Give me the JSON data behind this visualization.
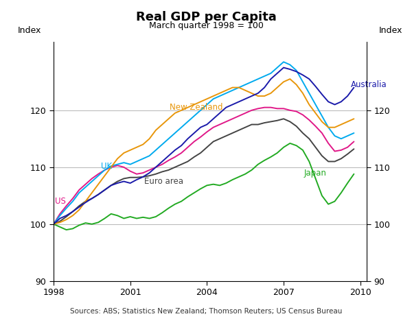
{
  "title": "Real GDP per Capita",
  "subtitle": "March quarter 1998 = 100",
  "ylabel_left": "Index",
  "ylabel_right": "Index",
  "source": "Sources: ABS; Statistics New Zealand; Thomson Reuters; US Census Bureau",
  "xlim": [
    1998.0,
    2010.25
  ],
  "ylim": [
    90,
    132
  ],
  "yticks": [
    90,
    100,
    110,
    120
  ],
  "xticks": [
    1998,
    2001,
    2004,
    2007,
    2010
  ],
  "series": {
    "Australia": {
      "color": "#1a1aaa",
      "ann_x": 2009.62,
      "ann_y": 124.5,
      "ann_ha": "left",
      "data": [
        [
          1998.0,
          100.0
        ],
        [
          1998.25,
          101.0
        ],
        [
          1998.5,
          101.5
        ],
        [
          1998.75,
          102.2
        ],
        [
          1999.0,
          103.0
        ],
        [
          1999.25,
          103.8
        ],
        [
          1999.5,
          104.5
        ],
        [
          1999.75,
          105.2
        ],
        [
          2000.0,
          106.0
        ],
        [
          2000.25,
          106.8
        ],
        [
          2000.5,
          107.2
        ],
        [
          2000.75,
          107.5
        ],
        [
          2001.0,
          107.2
        ],
        [
          2001.25,
          107.8
        ],
        [
          2001.5,
          108.3
        ],
        [
          2001.75,
          109.0
        ],
        [
          2002.0,
          110.0
        ],
        [
          2002.25,
          111.0
        ],
        [
          2002.5,
          112.0
        ],
        [
          2002.75,
          113.0
        ],
        [
          2003.0,
          113.8
        ],
        [
          2003.25,
          115.0
        ],
        [
          2003.5,
          116.0
        ],
        [
          2003.75,
          117.0
        ],
        [
          2004.0,
          117.5
        ],
        [
          2004.25,
          118.5
        ],
        [
          2004.5,
          119.5
        ],
        [
          2004.75,
          120.5
        ],
        [
          2005.0,
          121.0
        ],
        [
          2005.25,
          121.5
        ],
        [
          2005.5,
          122.0
        ],
        [
          2005.75,
          122.5
        ],
        [
          2006.0,
          123.0
        ],
        [
          2006.25,
          124.0
        ],
        [
          2006.5,
          125.5
        ],
        [
          2006.75,
          126.5
        ],
        [
          2007.0,
          127.5
        ],
        [
          2007.25,
          127.2
        ],
        [
          2007.5,
          126.8
        ],
        [
          2007.75,
          126.2
        ],
        [
          2008.0,
          125.5
        ],
        [
          2008.25,
          124.2
        ],
        [
          2008.5,
          122.8
        ],
        [
          2008.75,
          121.5
        ],
        [
          2009.0,
          121.0
        ],
        [
          2009.25,
          121.5
        ],
        [
          2009.5,
          122.5
        ],
        [
          2009.75,
          124.0
        ]
      ]
    },
    "New Zealand": {
      "color": "#e8960a",
      "ann_x": 2002.55,
      "ann_y": 120.5,
      "ann_ha": "left",
      "data": [
        [
          1998.0,
          100.0
        ],
        [
          1998.25,
          100.3
        ],
        [
          1998.5,
          100.8
        ],
        [
          1998.75,
          101.5
        ],
        [
          1999.0,
          102.5
        ],
        [
          1999.25,
          104.0
        ],
        [
          1999.5,
          105.5
        ],
        [
          1999.75,
          107.0
        ],
        [
          2000.0,
          108.5
        ],
        [
          2000.25,
          110.0
        ],
        [
          2000.5,
          111.5
        ],
        [
          2000.75,
          112.5
        ],
        [
          2001.0,
          113.0
        ],
        [
          2001.25,
          113.5
        ],
        [
          2001.5,
          114.0
        ],
        [
          2001.75,
          115.0
        ],
        [
          2002.0,
          116.5
        ],
        [
          2002.25,
          117.5
        ],
        [
          2002.5,
          118.5
        ],
        [
          2002.75,
          119.5
        ],
        [
          2003.0,
          120.0
        ],
        [
          2003.25,
          120.5
        ],
        [
          2003.5,
          121.0
        ],
        [
          2003.75,
          121.5
        ],
        [
          2004.0,
          122.0
        ],
        [
          2004.25,
          122.5
        ],
        [
          2004.5,
          123.0
        ],
        [
          2004.75,
          123.5
        ],
        [
          2005.0,
          124.0
        ],
        [
          2005.25,
          124.0
        ],
        [
          2005.5,
          123.5
        ],
        [
          2005.75,
          123.0
        ],
        [
          2006.0,
          122.5
        ],
        [
          2006.25,
          122.5
        ],
        [
          2006.5,
          123.0
        ],
        [
          2006.75,
          124.0
        ],
        [
          2007.0,
          125.0
        ],
        [
          2007.25,
          125.5
        ],
        [
          2007.5,
          124.5
        ],
        [
          2007.75,
          123.0
        ],
        [
          2008.0,
          121.0
        ],
        [
          2008.25,
          119.5
        ],
        [
          2008.5,
          118.0
        ],
        [
          2008.75,
          117.0
        ],
        [
          2009.0,
          117.0
        ],
        [
          2009.25,
          117.5
        ],
        [
          2009.5,
          118.0
        ],
        [
          2009.75,
          118.5
        ]
      ]
    },
    "UK": {
      "color": "#00aaee",
      "ann_x": 1999.85,
      "ann_y": 110.2,
      "ann_ha": "left",
      "data": [
        [
          1998.0,
          100.0
        ],
        [
          1998.25,
          101.5
        ],
        [
          1998.5,
          102.8
        ],
        [
          1998.75,
          104.0
        ],
        [
          1999.0,
          105.5
        ],
        [
          1999.25,
          106.5
        ],
        [
          1999.5,
          107.5
        ],
        [
          1999.75,
          108.5
        ],
        [
          2000.0,
          109.5
        ],
        [
          2000.25,
          110.2
        ],
        [
          2000.5,
          110.5
        ],
        [
          2000.75,
          110.8
        ],
        [
          2001.0,
          110.5
        ],
        [
          2001.25,
          111.0
        ],
        [
          2001.5,
          111.5
        ],
        [
          2001.75,
          112.0
        ],
        [
          2002.0,
          113.0
        ],
        [
          2002.25,
          114.0
        ],
        [
          2002.5,
          115.0
        ],
        [
          2002.75,
          116.0
        ],
        [
          2003.0,
          117.0
        ],
        [
          2003.25,
          118.0
        ],
        [
          2003.5,
          119.0
        ],
        [
          2003.75,
          120.0
        ],
        [
          2004.0,
          121.0
        ],
        [
          2004.25,
          122.0
        ],
        [
          2004.5,
          122.5
        ],
        [
          2004.75,
          123.0
        ],
        [
          2005.0,
          123.5
        ],
        [
          2005.25,
          124.0
        ],
        [
          2005.5,
          124.5
        ],
        [
          2005.75,
          125.0
        ],
        [
          2006.0,
          125.5
        ],
        [
          2006.25,
          126.0
        ],
        [
          2006.5,
          126.5
        ],
        [
          2006.75,
          127.5
        ],
        [
          2007.0,
          128.5
        ],
        [
          2007.25,
          128.0
        ],
        [
          2007.5,
          127.0
        ],
        [
          2007.75,
          125.0
        ],
        [
          2008.0,
          123.0
        ],
        [
          2008.25,
          121.0
        ],
        [
          2008.5,
          119.0
        ],
        [
          2008.75,
          117.0
        ],
        [
          2009.0,
          115.5
        ],
        [
          2009.25,
          115.0
        ],
        [
          2009.5,
          115.5
        ],
        [
          2009.75,
          116.0
        ]
      ]
    },
    "US": {
      "color": "#e01888",
      "ann_x": 1998.05,
      "ann_y": 104.0,
      "ann_ha": "left",
      "data": [
        [
          1998.0,
          100.0
        ],
        [
          1998.25,
          101.8
        ],
        [
          1998.5,
          103.2
        ],
        [
          1998.75,
          104.5
        ],
        [
          1999.0,
          106.0
        ],
        [
          1999.25,
          107.0
        ],
        [
          1999.5,
          108.0
        ],
        [
          1999.75,
          108.8
        ],
        [
          2000.0,
          109.5
        ],
        [
          2000.25,
          110.0
        ],
        [
          2000.5,
          110.3
        ],
        [
          2000.75,
          110.0
        ],
        [
          2001.0,
          109.3
        ],
        [
          2001.25,
          108.8
        ],
        [
          2001.5,
          109.0
        ],
        [
          2001.75,
          109.5
        ],
        [
          2002.0,
          110.0
        ],
        [
          2002.25,
          110.5
        ],
        [
          2002.5,
          111.2
        ],
        [
          2002.75,
          111.8
        ],
        [
          2003.0,
          112.5
        ],
        [
          2003.25,
          113.5
        ],
        [
          2003.5,
          114.5
        ],
        [
          2003.75,
          115.3
        ],
        [
          2004.0,
          116.2
        ],
        [
          2004.25,
          117.0
        ],
        [
          2004.5,
          117.5
        ],
        [
          2004.75,
          118.0
        ],
        [
          2005.0,
          118.5
        ],
        [
          2005.25,
          119.0
        ],
        [
          2005.5,
          119.5
        ],
        [
          2005.75,
          120.0
        ],
        [
          2006.0,
          120.3
        ],
        [
          2006.25,
          120.5
        ],
        [
          2006.5,
          120.5
        ],
        [
          2006.75,
          120.3
        ],
        [
          2007.0,
          120.3
        ],
        [
          2007.25,
          120.0
        ],
        [
          2007.5,
          119.8
        ],
        [
          2007.75,
          119.2
        ],
        [
          2008.0,
          118.3
        ],
        [
          2008.25,
          117.2
        ],
        [
          2008.5,
          116.0
        ],
        [
          2008.75,
          114.2
        ],
        [
          2009.0,
          112.8
        ],
        [
          2009.25,
          113.0
        ],
        [
          2009.5,
          113.5
        ],
        [
          2009.75,
          114.5
        ]
      ]
    },
    "Euro area": {
      "color": "#444444",
      "ann_x": 2001.55,
      "ann_y": 107.5,
      "ann_ha": "left",
      "data": [
        [
          1998.0,
          100.0
        ],
        [
          1998.25,
          100.5
        ],
        [
          1998.5,
          101.3
        ],
        [
          1998.75,
          102.2
        ],
        [
          1999.0,
          103.2
        ],
        [
          1999.25,
          104.0
        ],
        [
          1999.5,
          104.5
        ],
        [
          1999.75,
          105.2
        ],
        [
          2000.0,
          106.0
        ],
        [
          2000.25,
          106.8
        ],
        [
          2000.5,
          107.5
        ],
        [
          2000.75,
          108.0
        ],
        [
          2001.0,
          108.2
        ],
        [
          2001.25,
          108.2
        ],
        [
          2001.5,
          108.3
        ],
        [
          2001.75,
          108.5
        ],
        [
          2002.0,
          108.8
        ],
        [
          2002.25,
          109.2
        ],
        [
          2002.5,
          109.5
        ],
        [
          2002.75,
          110.0
        ],
        [
          2003.0,
          110.5
        ],
        [
          2003.25,
          111.0
        ],
        [
          2003.5,
          111.8
        ],
        [
          2003.75,
          112.5
        ],
        [
          2004.0,
          113.5
        ],
        [
          2004.25,
          114.5
        ],
        [
          2004.5,
          115.0
        ],
        [
          2004.75,
          115.5
        ],
        [
          2005.0,
          116.0
        ],
        [
          2005.25,
          116.5
        ],
        [
          2005.5,
          117.0
        ],
        [
          2005.75,
          117.5
        ],
        [
          2006.0,
          117.5
        ],
        [
          2006.25,
          117.8
        ],
        [
          2006.5,
          118.0
        ],
        [
          2006.75,
          118.2
        ],
        [
          2007.0,
          118.5
        ],
        [
          2007.25,
          118.0
        ],
        [
          2007.5,
          117.2
        ],
        [
          2007.75,
          116.0
        ],
        [
          2008.0,
          115.0
        ],
        [
          2008.25,
          113.5
        ],
        [
          2008.5,
          112.0
        ],
        [
          2008.75,
          111.0
        ],
        [
          2009.0,
          111.0
        ],
        [
          2009.25,
          111.5
        ],
        [
          2009.5,
          112.3
        ],
        [
          2009.75,
          113.2
        ]
      ]
    },
    "Japan": {
      "color": "#22aa22",
      "ann_x": 2007.8,
      "ann_y": 109.0,
      "ann_ha": "left",
      "data": [
        [
          1998.0,
          100.0
        ],
        [
          1998.25,
          99.5
        ],
        [
          1998.5,
          99.0
        ],
        [
          1998.75,
          99.2
        ],
        [
          1999.0,
          99.8
        ],
        [
          1999.25,
          100.2
        ],
        [
          1999.5,
          100.0
        ],
        [
          1999.75,
          100.3
        ],
        [
          2000.0,
          101.0
        ],
        [
          2000.25,
          101.8
        ],
        [
          2000.5,
          101.5
        ],
        [
          2000.75,
          101.0
        ],
        [
          2001.0,
          101.3
        ],
        [
          2001.25,
          101.0
        ],
        [
          2001.5,
          101.2
        ],
        [
          2001.75,
          101.0
        ],
        [
          2002.0,
          101.3
        ],
        [
          2002.25,
          102.0
        ],
        [
          2002.5,
          102.8
        ],
        [
          2002.75,
          103.5
        ],
        [
          2003.0,
          104.0
        ],
        [
          2003.25,
          104.8
        ],
        [
          2003.5,
          105.5
        ],
        [
          2003.75,
          106.2
        ],
        [
          2004.0,
          106.8
        ],
        [
          2004.25,
          107.0
        ],
        [
          2004.5,
          106.8
        ],
        [
          2004.75,
          107.2
        ],
        [
          2005.0,
          107.8
        ],
        [
          2005.25,
          108.3
        ],
        [
          2005.5,
          108.8
        ],
        [
          2005.75,
          109.5
        ],
        [
          2006.0,
          110.5
        ],
        [
          2006.25,
          111.2
        ],
        [
          2006.5,
          111.8
        ],
        [
          2006.75,
          112.5
        ],
        [
          2007.0,
          113.5
        ],
        [
          2007.25,
          114.2
        ],
        [
          2007.5,
          113.8
        ],
        [
          2007.75,
          113.0
        ],
        [
          2008.0,
          111.0
        ],
        [
          2008.25,
          108.0
        ],
        [
          2008.5,
          105.0
        ],
        [
          2008.75,
          103.5
        ],
        [
          2009.0,
          104.0
        ],
        [
          2009.25,
          105.5
        ],
        [
          2009.5,
          107.2
        ],
        [
          2009.75,
          108.8
        ]
      ]
    }
  }
}
